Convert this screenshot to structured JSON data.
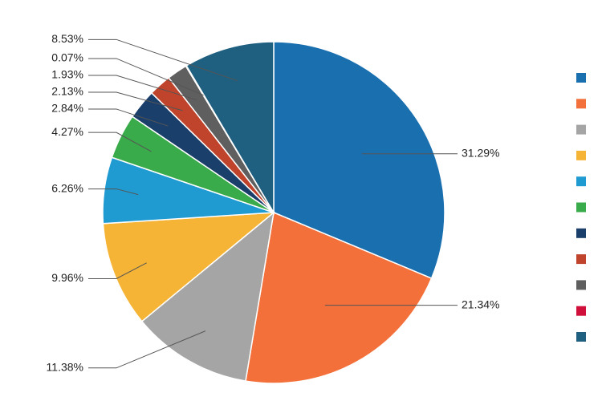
{
  "chart_data": {
    "type": "pie",
    "values": [
      31.29,
      21.34,
      11.38,
      9.96,
      6.26,
      4.27,
      2.84,
      2.13,
      1.93,
      0.07,
      8.53
    ],
    "value_labels": [
      "31.29%",
      "21.34%",
      "11.38%",
      "9.96%",
      "6.26%",
      "4.27%",
      "2.84%",
      "2.13%",
      "1.93%",
      "0.07%",
      "8.53%"
    ],
    "colors": [
      "#1a6faf",
      "#f3703a",
      "#a5a5a5",
      "#f5b435",
      "#1f9bd1",
      "#3aab4a",
      "#1b3f6b",
      "#c0432b",
      "#5f5f5f",
      "#d0103a",
      "#1f5f80"
    ]
  }
}
